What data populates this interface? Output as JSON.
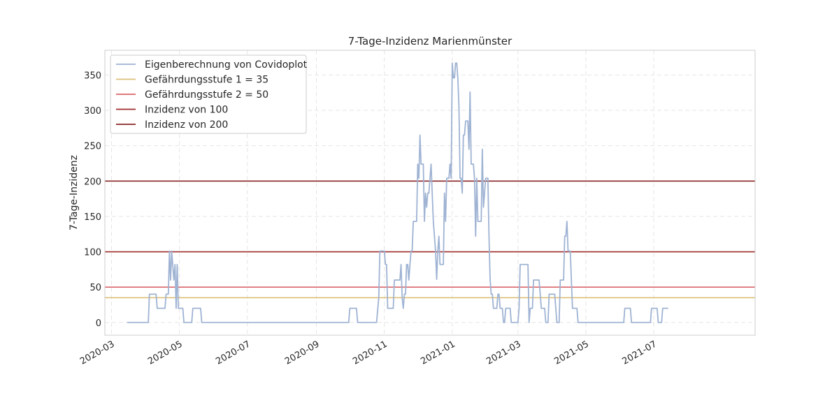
{
  "chart_data": {
    "type": "line",
    "title": "7-Tage-Inzidenz Marienmünster",
    "ylabel": "7-Tage-Inzidenz",
    "xlabel": "",
    "ylim": [
      -18,
      385
    ],
    "xlim": [
      "2020-02-24",
      "2021-09-30"
    ],
    "yticks": [
      0,
      50,
      100,
      150,
      200,
      250,
      300,
      350
    ],
    "xticks": [
      "2020-03",
      "2020-05",
      "2020-07",
      "2020-09",
      "2020-11",
      "2021-01",
      "2021-03",
      "2021-05",
      "2021-07"
    ],
    "grid": true,
    "legend_position": "top-left",
    "series": [
      {
        "name": "Eigenberechnung von Covidoplot",
        "color": "#9fb3d3",
        "points": [
          [
            "2020-03-15",
            0
          ],
          [
            "2020-04-03",
            0
          ],
          [
            "2020-04-04",
            40
          ],
          [
            "2020-04-10",
            40
          ],
          [
            "2020-04-11",
            20
          ],
          [
            "2020-04-18",
            20
          ],
          [
            "2020-04-19",
            40
          ],
          [
            "2020-04-21",
            40
          ],
          [
            "2020-04-22",
            101
          ],
          [
            "2020-04-23",
            60
          ],
          [
            "2020-04-24",
            101
          ],
          [
            "2020-04-26",
            60
          ],
          [
            "2020-04-27",
            82
          ],
          [
            "2020-04-28",
            20
          ],
          [
            "2020-04-29",
            82
          ],
          [
            "2020-04-30",
            20
          ],
          [
            "2020-05-04",
            20
          ],
          [
            "2020-05-05",
            0
          ],
          [
            "2020-05-12",
            0
          ],
          [
            "2020-05-13",
            20
          ],
          [
            "2020-05-20",
            20
          ],
          [
            "2020-05-21",
            0
          ],
          [
            "2020-09-30",
            0
          ],
          [
            "2020-10-01",
            20
          ],
          [
            "2020-10-07",
            20
          ],
          [
            "2020-10-08",
            0
          ],
          [
            "2020-10-25",
            0
          ],
          [
            "2020-10-27",
            35
          ],
          [
            "2020-10-28",
            101
          ],
          [
            "2020-11-01",
            101
          ],
          [
            "2020-11-02",
            82
          ],
          [
            "2020-11-03",
            82
          ],
          [
            "2020-11-04",
            20
          ],
          [
            "2020-11-09",
            20
          ],
          [
            "2020-11-10",
            60
          ],
          [
            "2020-11-15",
            60
          ],
          [
            "2020-11-16",
            82
          ],
          [
            "2020-11-17",
            35
          ],
          [
            "2020-11-18",
            20
          ],
          [
            "2020-11-19",
            40
          ],
          [
            "2020-11-20",
            40
          ],
          [
            "2020-11-21",
            82
          ],
          [
            "2020-11-22",
            82
          ],
          [
            "2020-11-23",
            60
          ],
          [
            "2020-11-24",
            82
          ],
          [
            "2020-11-25",
            101
          ],
          [
            "2020-11-26",
            101
          ],
          [
            "2020-11-27",
            143
          ],
          [
            "2020-11-30",
            143
          ],
          [
            "2020-12-01",
            224
          ],
          [
            "2020-12-02",
            204
          ],
          [
            "2020-12-03",
            265
          ],
          [
            "2020-12-04",
            224
          ],
          [
            "2020-12-06",
            224
          ],
          [
            "2020-12-07",
            143
          ],
          [
            "2020-12-08",
            183
          ],
          [
            "2020-12-09",
            163
          ],
          [
            "2020-12-10",
            183
          ],
          [
            "2020-12-11",
            183
          ],
          [
            "2020-12-12",
            204
          ],
          [
            "2020-12-13",
            224
          ],
          [
            "2020-12-14",
            183
          ],
          [
            "2020-12-15",
            143
          ],
          [
            "2020-12-16",
            122
          ],
          [
            "2020-12-17",
            101
          ],
          [
            "2020-12-18",
            61
          ],
          [
            "2020-12-19",
            101
          ],
          [
            "2020-12-20",
            122
          ],
          [
            "2020-12-21",
            82
          ],
          [
            "2020-12-23",
            82
          ],
          [
            "2020-12-24",
            82
          ],
          [
            "2020-12-25",
            183
          ],
          [
            "2020-12-26",
            143
          ],
          [
            "2020-12-27",
            204
          ],
          [
            "2020-12-29",
            204
          ],
          [
            "2020-12-30",
            224
          ],
          [
            "2020-12-31",
            204
          ],
          [
            "2021-01-01",
            367
          ],
          [
            "2021-01-02",
            346
          ],
          [
            "2021-01-03",
            346
          ],
          [
            "2021-01-04",
            367
          ],
          [
            "2021-01-05",
            367
          ],
          [
            "2021-01-06",
            346
          ],
          [
            "2021-01-07",
            306
          ],
          [
            "2021-01-08",
            204
          ],
          [
            "2021-01-09",
            204
          ],
          [
            "2021-01-10",
            183
          ],
          [
            "2021-01-11",
            265
          ],
          [
            "2021-01-12",
            265
          ],
          [
            "2021-01-13",
            285
          ],
          [
            "2021-01-15",
            285
          ],
          [
            "2021-01-16",
            245
          ],
          [
            "2021-01-17",
            326
          ],
          [
            "2021-01-18",
            224
          ],
          [
            "2021-01-20",
            224
          ],
          [
            "2021-01-21",
            204
          ],
          [
            "2021-01-22",
            122
          ],
          [
            "2021-01-23",
            204
          ],
          [
            "2021-01-24",
            143
          ],
          [
            "2021-01-27",
            143
          ],
          [
            "2021-01-28",
            245
          ],
          [
            "2021-01-29",
            163
          ],
          [
            "2021-01-30",
            183
          ],
          [
            "2021-01-31",
            204
          ],
          [
            "2021-02-02",
            204
          ],
          [
            "2021-02-03",
            122
          ],
          [
            "2021-02-04",
            61
          ],
          [
            "2021-02-05",
            40
          ],
          [
            "2021-02-06",
            40
          ],
          [
            "2021-02-07",
            20
          ],
          [
            "2021-02-10",
            20
          ],
          [
            "2021-02-11",
            40
          ],
          [
            "2021-02-12",
            40
          ],
          [
            "2021-02-13",
            20
          ],
          [
            "2021-02-15",
            20
          ],
          [
            "2021-02-16",
            0
          ],
          [
            "2021-02-17",
            0
          ],
          [
            "2021-02-18",
            20
          ],
          [
            "2021-02-22",
            20
          ],
          [
            "2021-02-23",
            0
          ],
          [
            "2021-03-01",
            0
          ],
          [
            "2021-03-02",
            20
          ],
          [
            "2021-03-03",
            82
          ],
          [
            "2021-03-10",
            82
          ],
          [
            "2021-03-11",
            0
          ],
          [
            "2021-03-12",
            20
          ],
          [
            "2021-03-14",
            20
          ],
          [
            "2021-03-15",
            60
          ],
          [
            "2021-03-20",
            60
          ],
          [
            "2021-03-21",
            40
          ],
          [
            "2021-03-22",
            20
          ],
          [
            "2021-03-25",
            20
          ],
          [
            "2021-03-26",
            0
          ],
          [
            "2021-03-28",
            0
          ],
          [
            "2021-03-29",
            40
          ],
          [
            "2021-04-03",
            40
          ],
          [
            "2021-04-04",
            20
          ],
          [
            "2021-04-05",
            0
          ],
          [
            "2021-04-07",
            0
          ],
          [
            "2021-04-08",
            60
          ],
          [
            "2021-04-11",
            60
          ],
          [
            "2021-04-12",
            122
          ],
          [
            "2021-04-13",
            122
          ],
          [
            "2021-04-14",
            143
          ],
          [
            "2021-04-15",
            101
          ],
          [
            "2021-04-17",
            101
          ],
          [
            "2021-04-18",
            60
          ],
          [
            "2021-04-19",
            20
          ],
          [
            "2021-04-23",
            20
          ],
          [
            "2021-04-24",
            0
          ],
          [
            "2021-06-04",
            0
          ],
          [
            "2021-06-05",
            20
          ],
          [
            "2021-06-10",
            20
          ],
          [
            "2021-06-11",
            0
          ],
          [
            "2021-06-28",
            0
          ],
          [
            "2021-06-29",
            20
          ],
          [
            "2021-07-04",
            20
          ],
          [
            "2021-07-05",
            0
          ],
          [
            "2021-07-08",
            0
          ],
          [
            "2021-07-09",
            20
          ],
          [
            "2021-07-14",
            20
          ]
        ]
      }
    ],
    "thresholds": [
      {
        "name": "Gefährdungsstufe 1 = 35",
        "value": 35,
        "color": "#dcc17c"
      },
      {
        "name": "Gefährdungsstufe 2 = 50",
        "value": 50,
        "color": "#d9666a"
      },
      {
        "name": "Inzidenz von 100",
        "value": 100,
        "color": "#a02b2b"
      },
      {
        "name": "Inzidenz von 200",
        "value": 200,
        "color": "#8a2424"
      }
    ]
  }
}
